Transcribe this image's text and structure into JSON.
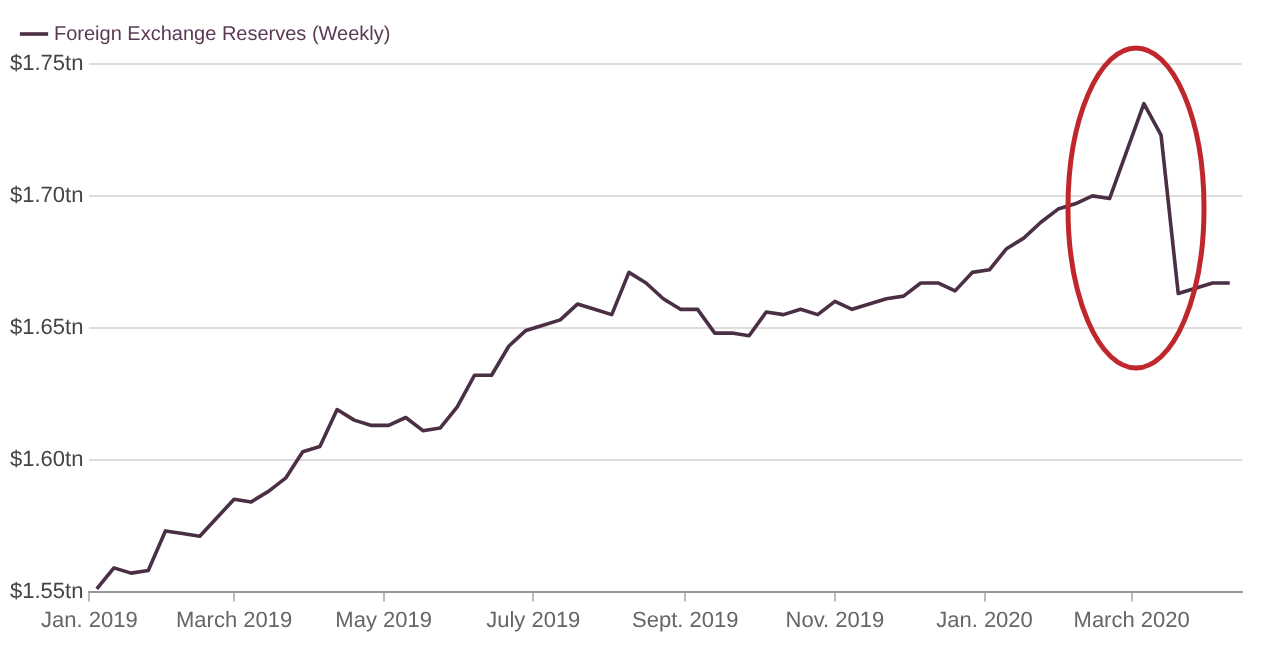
{
  "chart_data": {
    "type": "line",
    "legend": "top left",
    "grid": "y",
    "marker": "none",
    "line_style": "solid",
    "x": [
      "2019-01-04",
      "2019-01-11",
      "2019-01-18",
      "2019-01-25",
      "2019-02-01",
      "2019-02-08",
      "2019-02-15",
      "2019-02-22",
      "2019-03-01",
      "2019-03-08",
      "2019-03-15",
      "2019-03-22",
      "2019-03-29",
      "2019-04-05",
      "2019-04-12",
      "2019-04-19",
      "2019-04-26",
      "2019-05-03",
      "2019-05-10",
      "2019-05-17",
      "2019-05-24",
      "2019-05-31",
      "2019-06-07",
      "2019-06-14",
      "2019-06-21",
      "2019-06-28",
      "2019-07-05",
      "2019-07-12",
      "2019-07-19",
      "2019-07-26",
      "2019-08-02",
      "2019-08-09",
      "2019-08-16",
      "2019-08-23",
      "2019-08-30",
      "2019-09-06",
      "2019-09-13",
      "2019-09-20",
      "2019-09-27",
      "2019-10-04",
      "2019-10-11",
      "2019-10-18",
      "2019-10-25",
      "2019-11-01",
      "2019-11-08",
      "2019-11-15",
      "2019-11-22",
      "2019-11-29",
      "2019-12-06",
      "2019-12-13",
      "2019-12-20",
      "2019-12-27",
      "2020-01-03",
      "2020-01-10",
      "2020-01-17",
      "2020-01-24",
      "2020-01-31",
      "2020-02-07",
      "2020-02-14",
      "2020-02-21",
      "2020-02-28",
      "2020-03-06",
      "2020-03-13",
      "2020-03-20",
      "2020-03-27",
      "2020-04-03",
      "2020-04-10"
    ],
    "series": [
      {
        "name": "Foreign Exchange Reserves (Weekly)",
        "color": "#4a2f45",
        "values": [
          1.551,
          1.559,
          1.557,
          1.558,
          1.573,
          1.572,
          1.571,
          1.578,
          1.585,
          1.584,
          1.588,
          1.593,
          1.603,
          1.605,
          1.619,
          1.615,
          1.613,
          1.613,
          1.616,
          1.611,
          1.612,
          1.62,
          1.632,
          1.632,
          1.643,
          1.649,
          1.651,
          1.653,
          1.659,
          1.657,
          1.655,
          1.671,
          1.667,
          1.661,
          1.657,
          1.657,
          1.648,
          1.648,
          1.647,
          1.656,
          1.655,
          1.657,
          1.655,
          1.66,
          1.657,
          1.659,
          1.661,
          1.662,
          1.667,
          1.667,
          1.664,
          1.671,
          1.672,
          1.68,
          1.684,
          1.69,
          1.695,
          1.697,
          1.7,
          1.699,
          1.717,
          1.735,
          1.723,
          1.663,
          1.665,
          1.667,
          1.667
        ]
      }
    ],
    "xlim": [
      "2019-01-01",
      "2020-04-15"
    ],
    "xticks": [
      {
        "value": "2019-01-01",
        "label": "Jan. 2019"
      },
      {
        "value": "2019-03-01",
        "label": "March 2019"
      },
      {
        "value": "2019-05-01",
        "label": "May 2019"
      },
      {
        "value": "2019-07-01",
        "label": "July 2019"
      },
      {
        "value": "2019-09-01",
        "label": "Sept. 2019"
      },
      {
        "value": "2019-11-01",
        "label": "Nov. 2019"
      },
      {
        "value": "2020-01-01",
        "label": "Jan. 2020"
      },
      {
        "value": "2020-03-01",
        "label": "March 2020"
      }
    ],
    "ylim": [
      1.55,
      1.75
    ],
    "yticks": [
      {
        "value": 1.55,
        "label": "$1.55tn"
      },
      {
        "value": 1.6,
        "label": "$1.60tn"
      },
      {
        "value": 1.65,
        "label": "$1.65tn"
      },
      {
        "value": 1.7,
        "label": "$1.70tn"
      },
      {
        "value": 1.75,
        "label": "$1.75tn"
      }
    ]
  }
}
